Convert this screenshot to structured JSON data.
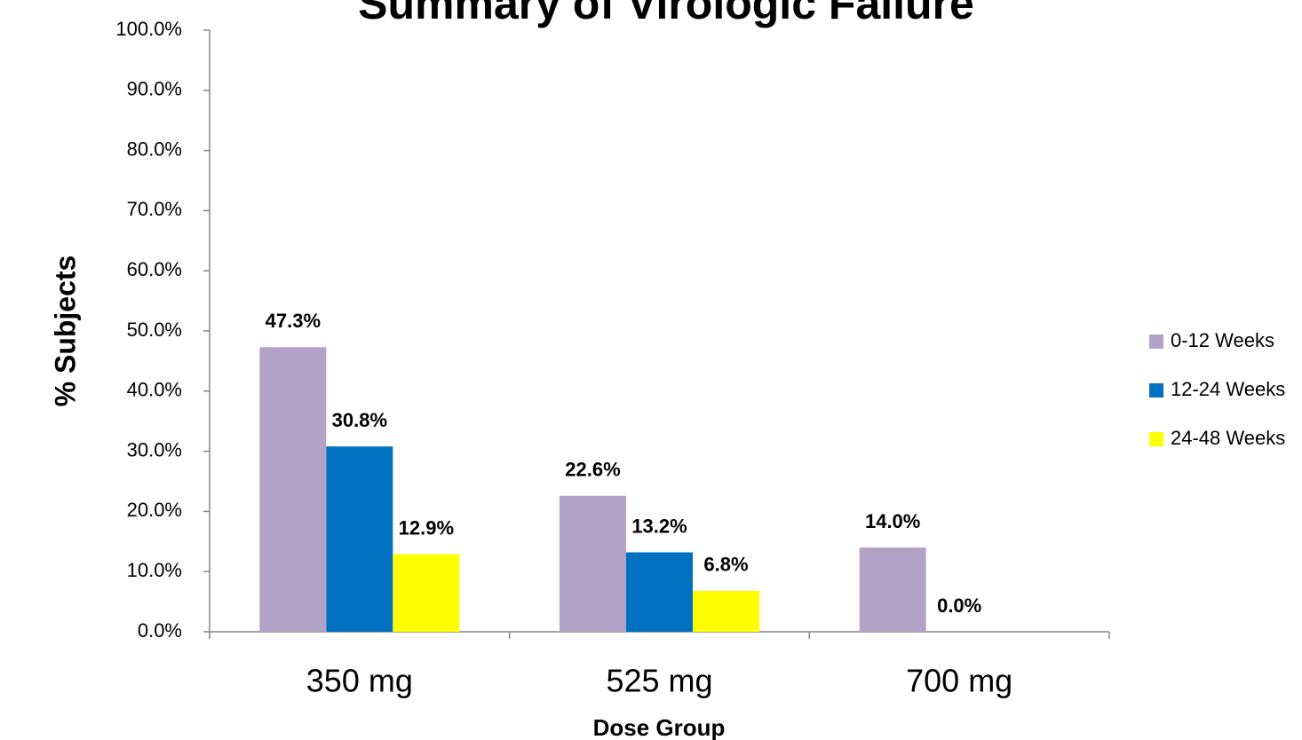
{
  "chart_data": {
    "type": "bar",
    "title": "Summary of Virologic Failure",
    "x_label": "Dose Group",
    "y_label": "% Subjects",
    "categories": [
      "350 mg",
      "525 mg",
      "700 mg"
    ],
    "series": [
      {
        "name": "0-12 Weeks",
        "color": "#b3a2c7",
        "values": [
          47.3,
          22.6,
          14.0
        ],
        "value_labels": [
          "47.3%",
          "22.6%",
          "14.0%"
        ]
      },
      {
        "name": "12-24 Weeks",
        "color": "#0070c0",
        "values": [
          30.8,
          13.2,
          0.0
        ],
        "value_labels": [
          "30.8%",
          "13.2%",
          "0.0%"
        ]
      },
      {
        "name": "24-48 Weeks",
        "color": "#ffff00",
        "values": [
          12.9,
          6.8,
          null
        ],
        "value_labels": [
          "12.9%",
          "6.8%",
          null
        ]
      }
    ],
    "ylim": [
      0,
      100
    ],
    "yticks": [
      {
        "value": 0,
        "label": "0.0%"
      },
      {
        "value": 10,
        "label": "10.0%"
      },
      {
        "value": 20,
        "label": "20.0%"
      },
      {
        "value": 30,
        "label": "30.0%"
      },
      {
        "value": 40,
        "label": "40.0%"
      },
      {
        "value": 50,
        "label": "50.0%"
      },
      {
        "value": 60,
        "label": "60.0%"
      },
      {
        "value": 70,
        "label": "70.0%"
      },
      {
        "value": 80,
        "label": "80.0%"
      },
      {
        "value": 90,
        "label": "90.0%"
      },
      {
        "value": 100,
        "label": "100.0%"
      }
    ],
    "grid": false,
    "legend": "right"
  }
}
